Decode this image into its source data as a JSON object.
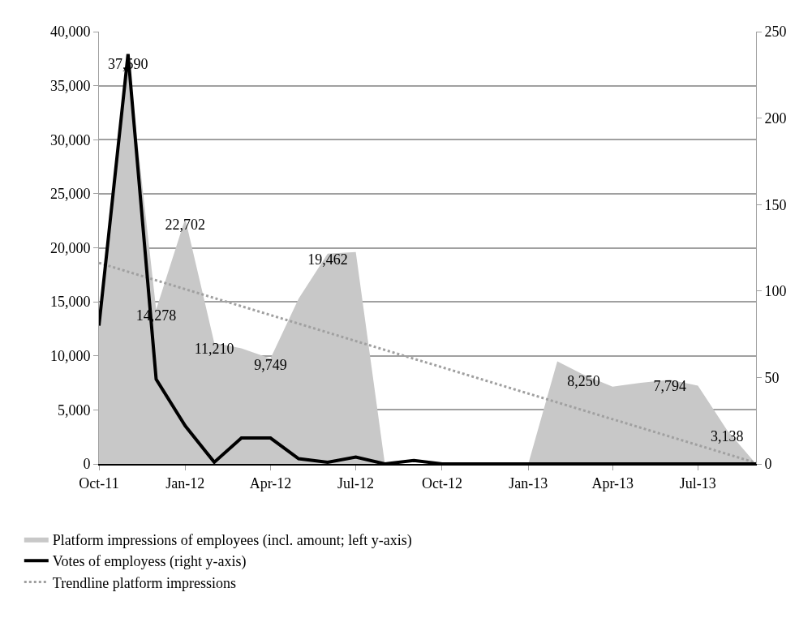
{
  "chart_data": {
    "type": "area",
    "x": [
      "2011-10",
      "2011-11",
      "2011-12",
      "2012-01",
      "2012-02",
      "2012-03",
      "2012-04",
      "2012-05",
      "2012-06",
      "2012-07",
      "2012-08",
      "2012-09",
      "2012-10",
      "2012-11",
      "2012-12",
      "2013-01",
      "2013-02",
      "2013-03",
      "2013-04",
      "2013-05",
      "2013-06",
      "2013-07",
      "2013-08",
      "2013-09"
    ],
    "series": [
      {
        "name": "Platform impressions of employees (incl. amount; left y-axis)",
        "color": "#c8c8c8",
        "values": [
          12800,
          37590,
          14278,
          22702,
          11210,
          10700,
          9749,
          15300,
          19462,
          19600,
          0,
          0,
          0,
          0,
          0,
          0,
          9500,
          8250,
          7150,
          7500,
          7794,
          7250,
          3138,
          0
        ],
        "value_labels": [
          null,
          "37,590",
          "14,278",
          "22,702",
          "11,210",
          null,
          "9,749",
          null,
          "19,462",
          null,
          null,
          null,
          null,
          null,
          null,
          null,
          null,
          "8,250",
          null,
          null,
          "7,794",
          null,
          "3,138",
          null
        ]
      },
      {
        "name": "Votes of employess (right y-axis)",
        "type": "line",
        "axis": "y2",
        "color": "#000000",
        "line_style": "solid",
        "values": [
          80,
          237,
          49,
          22,
          1,
          15,
          15,
          3,
          1,
          4,
          0,
          2,
          0,
          0,
          0,
          0,
          0,
          0,
          0,
          0,
          0,
          0,
          0,
          0
        ]
      },
      {
        "name": "Trendline platform impressions",
        "type": "line",
        "color": "#a0a0a0",
        "line_style": "dotted",
        "x": [
          "2011-10",
          "2013-09"
        ],
        "values": [
          18600,
          100
        ]
      }
    ],
    "xlim": [
      "2011-10",
      "2013-09"
    ],
    "xticks": [
      {
        "value": "2011-10",
        "label": "Oct-11"
      },
      {
        "value": "2012-01",
        "label": "Jan-12"
      },
      {
        "value": "2012-04",
        "label": "Apr-12"
      },
      {
        "value": "2012-07",
        "label": "Jul-12"
      },
      {
        "value": "2012-10",
        "label": "Oct-12"
      },
      {
        "value": "2013-01",
        "label": "Jan-13"
      },
      {
        "value": "2013-04",
        "label": "Apr-13"
      },
      {
        "value": "2013-07",
        "label": "Jul-13"
      }
    ],
    "ylim": [
      0,
      40000
    ],
    "yticks": [
      {
        "value": 0,
        "label": "0"
      },
      {
        "value": 5000,
        "label": "5,000"
      },
      {
        "value": 10000,
        "label": "10,000"
      },
      {
        "value": 15000,
        "label": "15,000"
      },
      {
        "value": 20000,
        "label": "20,000"
      },
      {
        "value": 25000,
        "label": "25,000"
      },
      {
        "value": 30000,
        "label": "30,000"
      },
      {
        "value": 35000,
        "label": "35,000"
      },
      {
        "value": 40000,
        "label": "40,000"
      }
    ],
    "y2lim": [
      0,
      250
    ],
    "y2ticks": [
      0,
      50,
      100,
      150,
      200,
      250
    ],
    "grid": "y",
    "legend": "bottom left",
    "marker": "none"
  }
}
